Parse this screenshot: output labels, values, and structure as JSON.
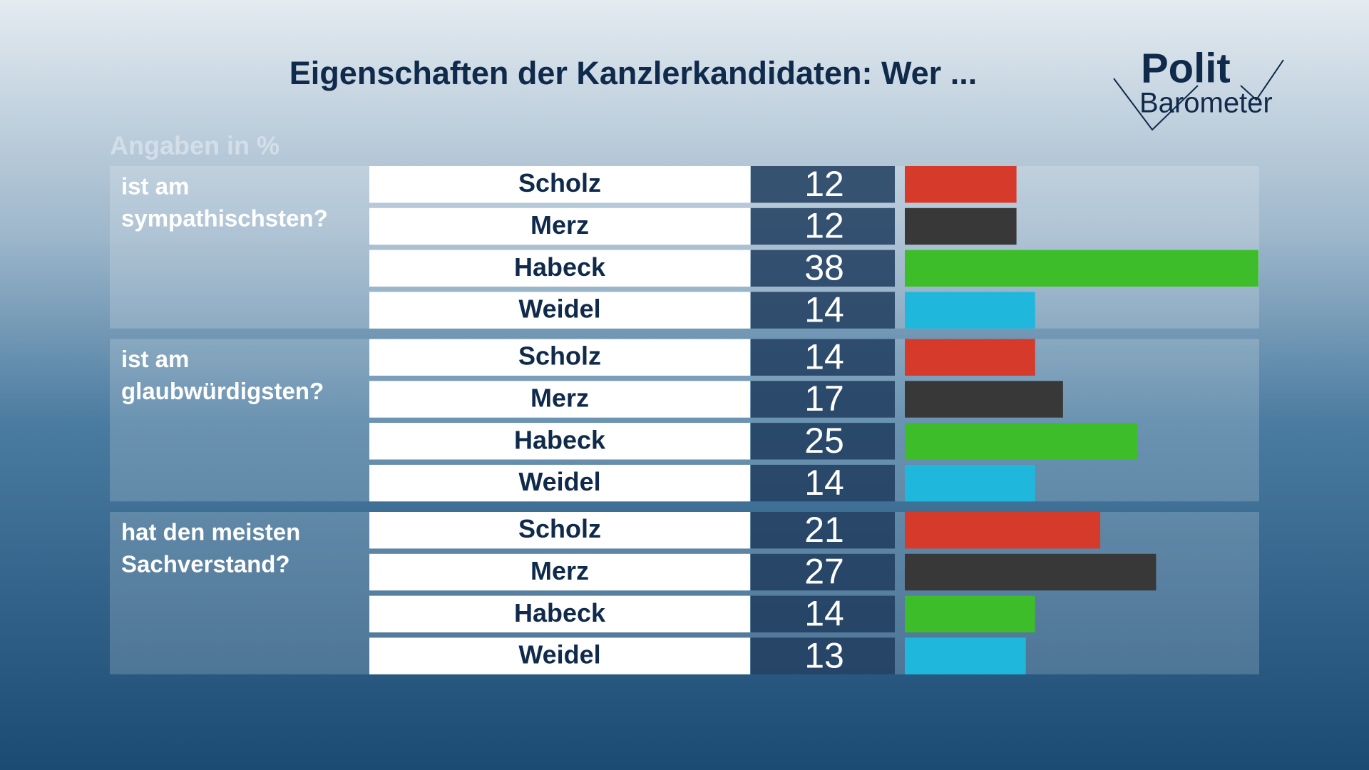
{
  "chart_data": {
    "type": "grouped-bar",
    "title": "Eigenschaften der Kanzlerkandidaten: Wer ...",
    "subtitle": "Angaben in %",
    "logo": [
      "Polit",
      "Barometer"
    ],
    "candidates": [
      {
        "name": "Scholz",
        "color": "#d63a2a"
      },
      {
        "name": "Merz",
        "color": "#383838"
      },
      {
        "name": "Habeck",
        "color": "#3dbd2a"
      },
      {
        "name": "Weidel",
        "color": "#1fb8dc"
      }
    ],
    "groups": [
      {
        "label": [
          "ist am",
          "sympathischsten?"
        ],
        "values": [
          12,
          12,
          38,
          14
        ]
      },
      {
        "label": [
          "ist am",
          "glaubwürdigsten?"
        ],
        "values": [
          14,
          17,
          25,
          14
        ]
      },
      {
        "label": [
          "hat den meisten",
          "Sachverstand?"
        ],
        "values": [
          21,
          27,
          14,
          13
        ]
      }
    ]
  }
}
